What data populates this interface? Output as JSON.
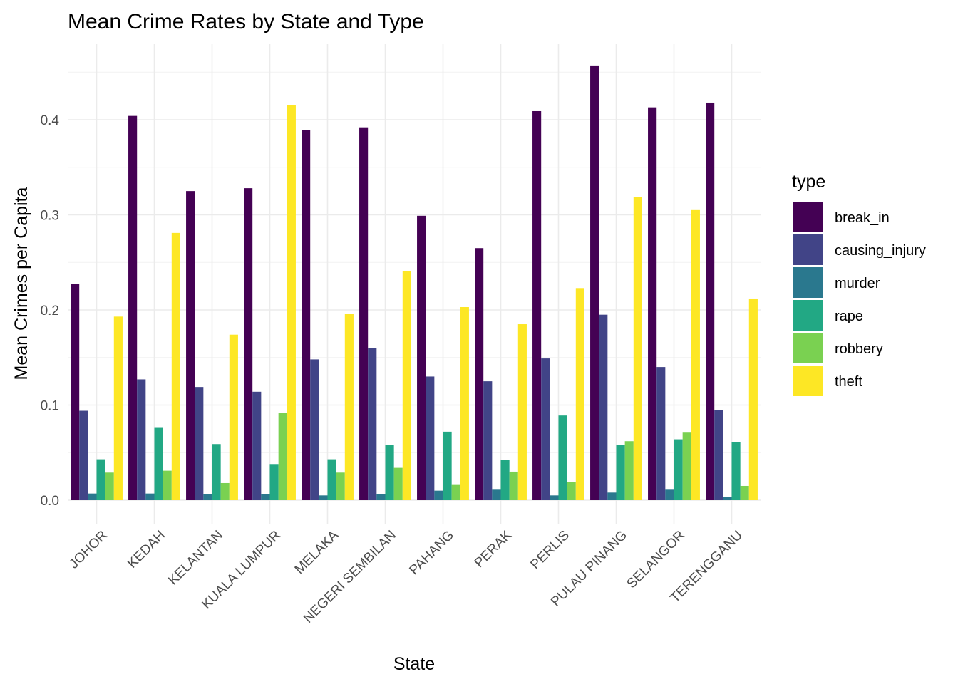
{
  "chart_data": {
    "type": "bar",
    "title": "Mean Crime Rates by State and Type",
    "xlabel": "State",
    "ylabel": "Mean Crimes per Capita",
    "ylim": [
      -0.02,
      0.475
    ],
    "yticks": [
      0.0,
      0.1,
      0.2,
      0.3,
      0.4
    ],
    "ytick_labels": [
      "0.0",
      "0.1",
      "0.2",
      "0.3",
      "0.4"
    ],
    "grid": true,
    "legend_position": "right",
    "legend_title": "type",
    "categories": [
      "JOHOR",
      "KEDAH",
      "KELANTAN",
      "KUALA LUMPUR",
      "MELAKA",
      "NEGERI SEMBILAN",
      "PAHANG",
      "PERAK",
      "PERLIS",
      "PULAU PINANG",
      "SELANGOR",
      "TERENGGANU"
    ],
    "series": [
      {
        "name": "break_in",
        "color": "#440154",
        "values": [
          0.227,
          0.404,
          0.325,
          0.328,
          0.389,
          0.392,
          0.299,
          0.265,
          0.409,
          0.457,
          0.413,
          0.418
        ]
      },
      {
        "name": "causing_injury",
        "color": "#414487",
        "values": [
          0.094,
          0.127,
          0.119,
          0.114,
          0.148,
          0.16,
          0.13,
          0.125,
          0.149,
          0.195,
          0.14,
          0.095
        ]
      },
      {
        "name": "murder",
        "color": "#2a788e",
        "values": [
          0.007,
          0.007,
          0.006,
          0.006,
          0.005,
          0.006,
          0.01,
          0.011,
          0.005,
          0.008,
          0.011,
          0.003
        ]
      },
      {
        "name": "rape",
        "color": "#22a884",
        "values": [
          0.043,
          0.076,
          0.059,
          0.038,
          0.043,
          0.058,
          0.072,
          0.042,
          0.089,
          0.058,
          0.064,
          0.061
        ]
      },
      {
        "name": "robbery",
        "color": "#7ad151",
        "values": [
          0.029,
          0.031,
          0.018,
          0.092,
          0.029,
          0.034,
          0.016,
          0.03,
          0.019,
          0.062,
          0.071,
          0.015
        ]
      },
      {
        "name": "theft",
        "color": "#fde725",
        "values": [
          0.193,
          0.281,
          0.174,
          0.415,
          0.196,
          0.241,
          0.203,
          0.185,
          0.223,
          0.319,
          0.305,
          0.212
        ]
      }
    ]
  }
}
